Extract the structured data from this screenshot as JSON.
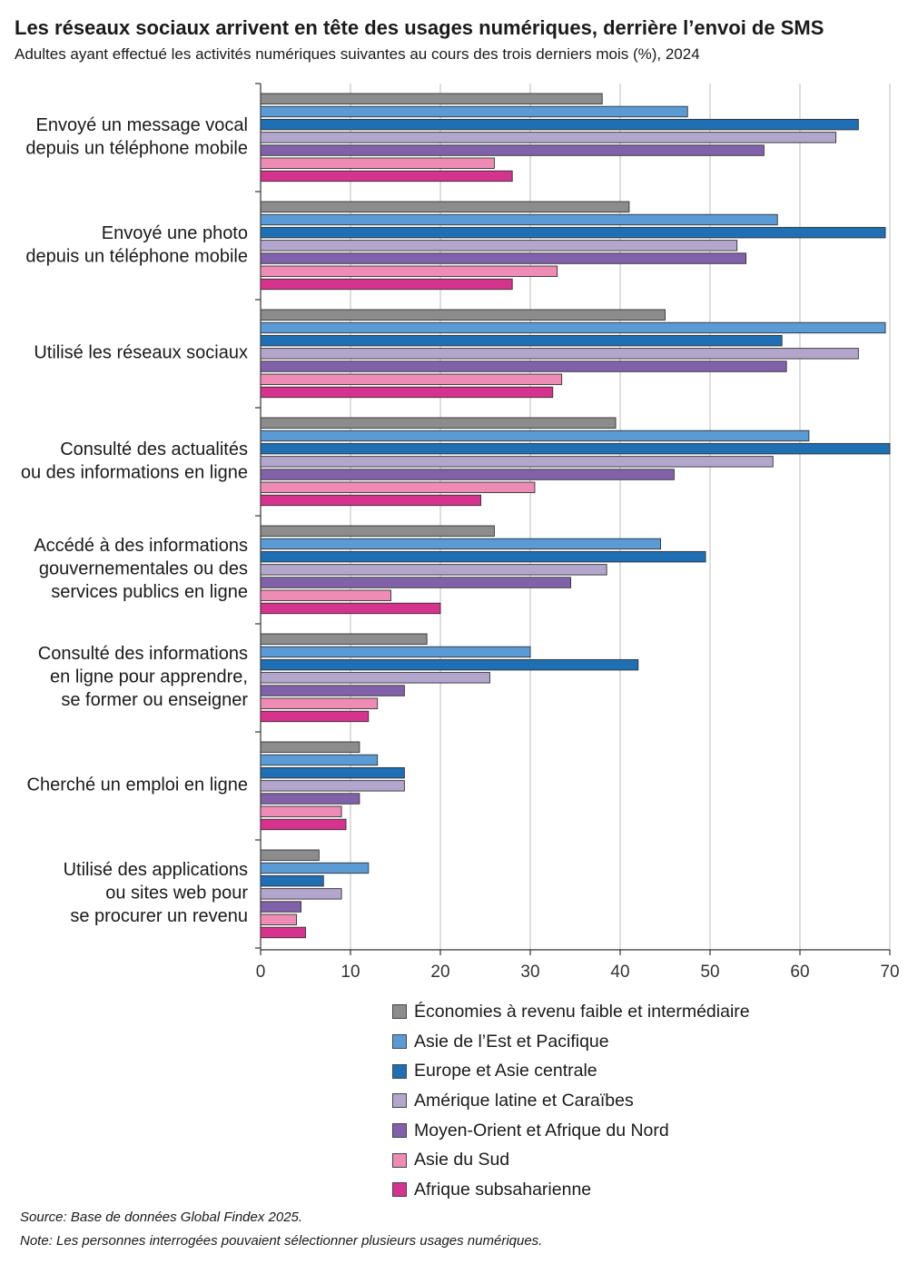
{
  "title": "Les réseaux sociaux arrivent en tête des usages numériques, derrière l’envoi de SMS",
  "subtitle": "Adultes ayant effectué les activités numériques suivantes au cours des trois derniers mois (%), 2024",
  "source": "Source: Base de données Global Findex 2025.",
  "note": "Note: Les personnes interrogées pouvaient sélectionner plusieurs usages numériques.",
  "chart_data": {
    "type": "bar",
    "orientation": "horizontal",
    "categories": [
      [
        "Envoyé un message vocal",
        "depuis un téléphone mobile"
      ],
      [
        "Envoyé une photo",
        "depuis un téléphone mobile"
      ],
      [
        "Utilisé les réseaux sociaux"
      ],
      [
        "Consulté des actualités",
        "ou des informations en ligne"
      ],
      [
        "Accédé à des informations",
        "gouvernementales ou des",
        "services publics en ligne"
      ],
      [
        "Consulté des informations",
        "en ligne pour apprendre,",
        "se former ou enseigner"
      ],
      [
        "Cherché un emploi en ligne"
      ],
      [
        "Utilisé des applications",
        "ou sites web pour",
        "se procurer un revenu"
      ]
    ],
    "series": [
      {
        "name": "Économies à revenu faible et intermédiaire",
        "color": "#8c8c8c",
        "values": [
          38,
          41,
          45,
          39.5,
          26,
          18.5,
          11,
          6.5
        ]
      },
      {
        "name": "Asie de l’Est et Pacifique",
        "color": "#5b9bd5",
        "values": [
          47.5,
          57.5,
          69.5,
          61,
          44.5,
          30,
          13,
          12
        ]
      },
      {
        "name": "Europe et Asie centrale",
        "color": "#1f6fb5",
        "values": [
          66.5,
          69.5,
          58,
          70,
          49.5,
          42,
          16,
          7
        ]
      },
      {
        "name": "Amérique latine et Caraïbes",
        "color": "#b3a6cc",
        "values": [
          64,
          53,
          66.5,
          57,
          38.5,
          25.5,
          16,
          9
        ]
      },
      {
        "name": "Moyen-Orient et Afrique du Nord",
        "color": "#8162aa",
        "values": [
          56,
          54,
          58.5,
          46,
          34.5,
          16,
          11,
          4.5
        ]
      },
      {
        "name": "Asie du Sud",
        "color": "#ee8cb6",
        "values": [
          26,
          33,
          33.5,
          30.5,
          14.5,
          13,
          9,
          4
        ]
      },
      {
        "name": "Afrique subsaharienne",
        "color": "#d6338f",
        "values": [
          28,
          28,
          32.5,
          24.5,
          20,
          12,
          9.5,
          5
        ]
      }
    ],
    "xlim": [
      0,
      70
    ],
    "xticks": [
      0,
      10,
      20,
      30,
      40,
      50,
      60,
      70
    ],
    "grid": true,
    "legend_position": "bottom-right"
  }
}
